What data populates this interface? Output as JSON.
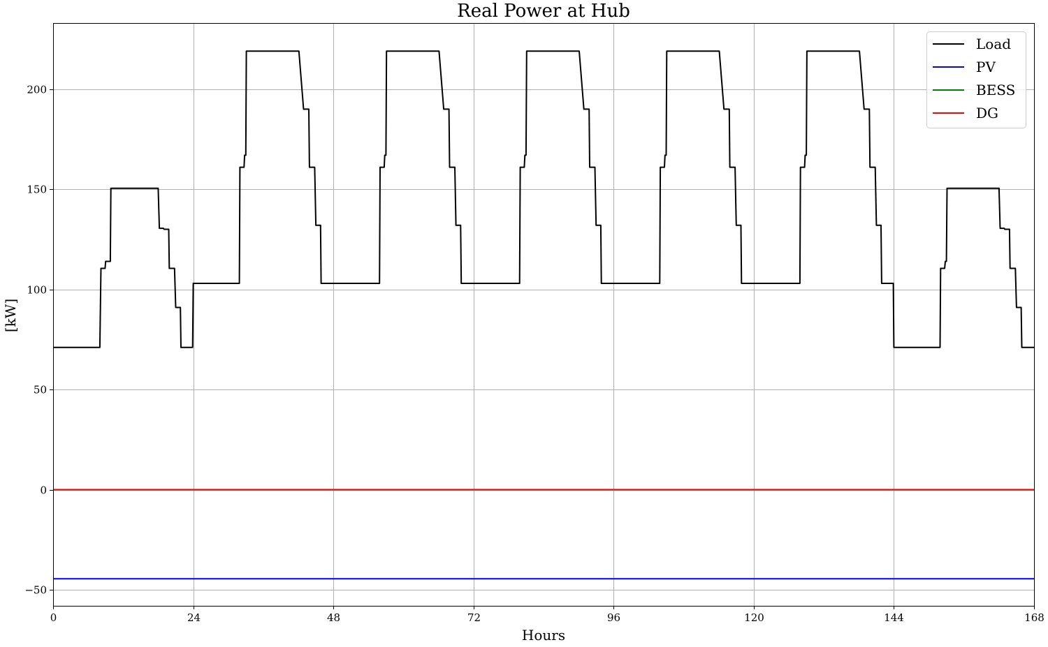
{
  "chart_data": {
    "type": "line",
    "title": "Real Power at Hub",
    "xlabel": "Hours",
    "ylabel": "[kW]",
    "xlim": [
      0,
      168
    ],
    "ylim": [
      -58,
      233
    ],
    "x_ticks": [
      0,
      24,
      48,
      72,
      96,
      120,
      144,
      168
    ],
    "y_ticks": [
      -50,
      0,
      50,
      100,
      150,
      200
    ],
    "y_tick_labels": [
      "−50",
      "0",
      "50",
      "100",
      "150",
      "200"
    ],
    "grid": true,
    "legend_position": "top-right",
    "series": [
      {
        "name": "Load",
        "color": "#000000",
        "x": [
          0,
          8,
          8.2,
          8.9,
          9.0,
          9.8,
          9.9,
          18.0,
          18.2,
          18.9,
          19.0,
          19.8,
          19.9,
          20.8,
          21.0,
          21.8,
          21.9,
          23.9,
          24.0,
          31.9,
          32.0,
          32.7,
          32.8,
          33.0,
          33.1,
          42.0,
          42.1,
          42.9,
          43.0,
          43.8,
          43.9,
          44.8,
          45.0,
          45.8,
          45.9,
          55.9,
          56.0,
          56.7,
          56.8,
          57.0,
          57.1,
          66.0,
          66.1,
          66.9,
          67.0,
          67.8,
          67.9,
          68.8,
          69.0,
          69.8,
          69.9,
          79.9,
          80.0,
          80.7,
          80.8,
          81.0,
          81.1,
          90.0,
          90.1,
          90.9,
          91.0,
          91.8,
          91.9,
          92.8,
          93.0,
          93.8,
          93.9,
          103.9,
          104.0,
          104.7,
          104.8,
          105.0,
          105.1,
          114.0,
          114.1,
          114.9,
          115.0,
          115.8,
          115.9,
          116.8,
          117.0,
          117.8,
          117.9,
          127.9,
          128.0,
          128.7,
          128.8,
          129.0,
          129.1,
          138.0,
          138.1,
          138.9,
          139.0,
          139.8,
          139.9,
          140.8,
          141.0,
          141.8,
          141.9,
          143.9,
          144.0,
          151.9,
          152.0,
          152.7,
          152.8,
          153.0,
          153.1,
          162.0,
          162.2,
          162.9,
          163.0,
          163.8,
          163.9,
          164.8,
          165.0,
          165.8,
          165.9,
          168
        ],
        "y": [
          71,
          71,
          110.5,
          110.5,
          114,
          114,
          150.5,
          150.5,
          130.5,
          130.5,
          130,
          130,
          110.5,
          110.5,
          91,
          91,
          71,
          71,
          103,
          103,
          161,
          161,
          167,
          167,
          219,
          219,
          219,
          190,
          190,
          190,
          161,
          161,
          132,
          132,
          103,
          103,
          161,
          161,
          167,
          167,
          219,
          219,
          219,
          190,
          190,
          190,
          161,
          161,
          132,
          132,
          103,
          103,
          161,
          161,
          167,
          167,
          219,
          219,
          219,
          190,
          190,
          190,
          161,
          161,
          132,
          132,
          103,
          103,
          161,
          161,
          167,
          167,
          219,
          219,
          219,
          190,
          190,
          190,
          161,
          161,
          132,
          132,
          103,
          103,
          161,
          161,
          167,
          167,
          219,
          219,
          219,
          190,
          190,
          190,
          161,
          161,
          132,
          132,
          103,
          103,
          71,
          71,
          110.5,
          110.5,
          114,
          114,
          150.5,
          150.5,
          130.5,
          130.5,
          130,
          130,
          110.5,
          110.5,
          91,
          91,
          71,
          71
        ]
      },
      {
        "name": "PV",
        "color": "#0000ff",
        "x": [
          0,
          168
        ],
        "y": [
          -44.5,
          -44.5
        ]
      },
      {
        "name": "BESS",
        "color": "#008000",
        "x": [
          0,
          168
        ],
        "y": [
          0,
          0
        ]
      },
      {
        "name": "DG",
        "color": "#ff0000",
        "x": [
          0,
          168
        ],
        "y": [
          0,
          0
        ]
      }
    ]
  }
}
